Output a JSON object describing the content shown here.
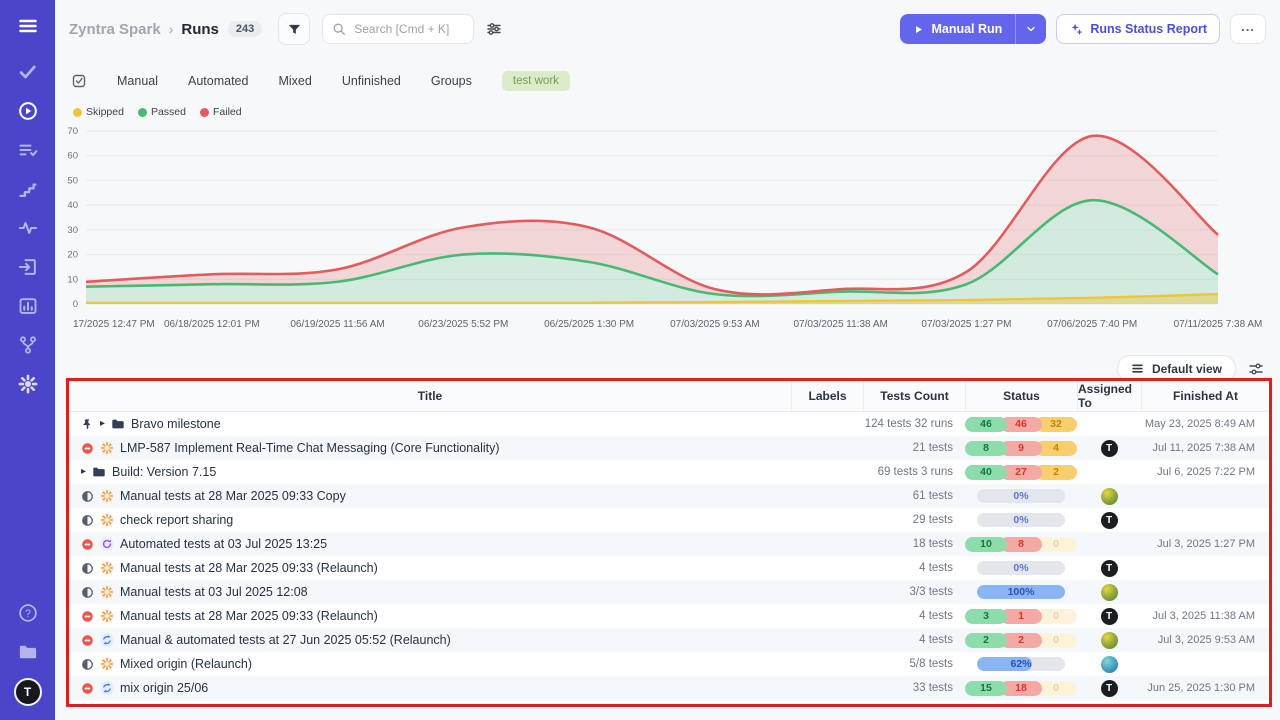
{
  "app": {
    "breadcrumb": {
      "project": "Zyntra Spark",
      "separator": "›",
      "page": "Runs",
      "count": "243"
    },
    "search": {
      "placeholder": "Search [Cmd + K]"
    },
    "actions": {
      "manual_run": "Manual Run",
      "report": "Runs Status Report",
      "more": "..."
    }
  },
  "tabs": {
    "items": [
      "Manual",
      "Automated",
      "Mixed",
      "Unfinished",
      "Groups"
    ],
    "chip": "test work"
  },
  "legend": [
    {
      "label": "Skipped",
      "color": "#eec43d"
    },
    {
      "label": "Passed",
      "color": "#47b972"
    },
    {
      "label": "Failed",
      "color": "#e25c5c"
    }
  ],
  "chart_data": {
    "type": "area",
    "stacked": true,
    "title": "",
    "xlabel": "",
    "ylabel": "",
    "ylim": [
      0,
      70
    ],
    "yticks": [
      0,
      10,
      20,
      30,
      40,
      50,
      60,
      70
    ],
    "grid": true,
    "legend_position": "top-left",
    "x_labels": [
      "17/2025 12:47 PM",
      "06/18/2025 12:01 PM",
      "06/19/2025 11:56 AM",
      "06/23/2025 5:52 PM",
      "06/25/2025 1:30 PM",
      "07/03/2025 9:53 AM",
      "07/03/2025 11:38 AM",
      "07/03/2025 1:27 PM",
      "07/06/2025 7:40 PM",
      "07/11/2025 7:38 AM"
    ],
    "series": [
      {
        "name": "Failed",
        "color": "#e25c5c",
        "fill": "rgba(226,92,92,0.22)",
        "values": [
          9,
          12,
          14,
          31,
          31,
          6,
          6,
          13,
          68,
          28
        ]
      },
      {
        "name": "Passed",
        "color": "#47b972",
        "fill": "rgba(71,185,114,0.20)",
        "values": [
          7,
          8,
          9,
          20,
          17,
          4,
          5,
          8,
          42,
          12
        ]
      },
      {
        "name": "Skipped",
        "color": "#eec43d",
        "fill": "rgba(238,196,61,0.45)",
        "values": [
          0.5,
          0.5,
          0.5,
          0.5,
          0.5,
          0.8,
          1.2,
          1.6,
          2.5,
          4
        ]
      }
    ]
  },
  "view_controls": {
    "default_view": "Default view"
  },
  "table": {
    "columns": [
      "Title",
      "Labels",
      "Tests Count",
      "Status",
      "Assigned To",
      "Finished At"
    ],
    "rows": [
      {
        "pin": true,
        "caret": true,
        "folder": true,
        "status_icon": null,
        "type_icon": null,
        "title": "Bravo milestone",
        "labels": "",
        "tests": "124 tests 32 runs",
        "status": {
          "kind": "badges",
          "passed": "46",
          "failed": "46",
          "skipped": "32",
          "skipped_faded": false
        },
        "assignee": null,
        "finished": "May 23, 2025 8:49 AM"
      },
      {
        "pin": false,
        "caret": false,
        "folder": false,
        "status_icon": "stopped",
        "type_icon": "manual",
        "title": "LMP-587 Implement Real-Time Chat Messaging (Core Functionality)",
        "labels": "",
        "tests": "21 tests",
        "status": {
          "kind": "badges",
          "passed": "8",
          "failed": "9",
          "skipped": "4",
          "skipped_faded": false
        },
        "assignee": "t-dark",
        "finished": "Jul 11, 2025 7:38 AM"
      },
      {
        "pin": false,
        "caret": true,
        "folder": true,
        "status_icon": null,
        "type_icon": null,
        "title": "Build: Version 7.15",
        "labels": "",
        "tests": "69 tests 3 runs",
        "status": {
          "kind": "badges",
          "passed": "40",
          "failed": "27",
          "skipped": "2",
          "skipped_faded": false
        },
        "assignee": null,
        "finished": "Jul 6, 2025 7:22 PM"
      },
      {
        "pin": false,
        "caret": false,
        "folder": false,
        "status_icon": "in-progress",
        "type_icon": "manual",
        "title": "Manual tests at 28 Mar 2025 09:33 Copy",
        "labels": "",
        "tests": "61 tests",
        "status": {
          "kind": "progress",
          "pct": 0,
          "label": "0%"
        },
        "assignee": "globe-green",
        "finished": ""
      },
      {
        "pin": false,
        "caret": false,
        "folder": false,
        "status_icon": "in-progress",
        "type_icon": "manual",
        "title": "check report sharing",
        "labels": "",
        "tests": "29 tests",
        "status": {
          "kind": "progress",
          "pct": 0,
          "label": "0%"
        },
        "assignee": "t-dark",
        "finished": ""
      },
      {
        "pin": false,
        "caret": false,
        "folder": false,
        "status_icon": "stopped",
        "type_icon": "automated",
        "title": "Automated tests at 03 Jul 2025 13:25",
        "labels": "",
        "tests": "18 tests",
        "status": {
          "kind": "badges",
          "passed": "10",
          "failed": "8",
          "skipped": "0",
          "skipped_faded": true
        },
        "assignee": null,
        "finished": "Jul 3, 2025 1:27 PM"
      },
      {
        "pin": false,
        "caret": false,
        "folder": false,
        "status_icon": "in-progress",
        "type_icon": "manual",
        "title": "Manual tests at 28 Mar 2025 09:33 (Relaunch)",
        "labels": "",
        "tests": "4 tests",
        "status": {
          "kind": "progress",
          "pct": 0,
          "label": "0%"
        },
        "assignee": "t-dark",
        "finished": ""
      },
      {
        "pin": false,
        "caret": false,
        "folder": false,
        "status_icon": "in-progress",
        "type_icon": "manual",
        "title": "Manual tests at 03 Jul 2025 12:08",
        "labels": "",
        "tests": "3/3 tests",
        "status": {
          "kind": "progress",
          "pct": 100,
          "label": "100%"
        },
        "assignee": "globe-green",
        "finished": ""
      },
      {
        "pin": false,
        "caret": false,
        "folder": false,
        "status_icon": "stopped",
        "type_icon": "manual",
        "title": "Manual tests at 28 Mar 2025 09:33 (Relaunch)",
        "labels": "",
        "tests": "4 tests",
        "status": {
          "kind": "badges",
          "passed": "3",
          "failed": "1",
          "skipped": "0",
          "skipped_faded": true
        },
        "assignee": "t-dark",
        "finished": "Jul 3, 2025 11:38 AM"
      },
      {
        "pin": false,
        "caret": false,
        "folder": false,
        "status_icon": "stopped",
        "type_icon": "mixed",
        "title": "Manual & automated tests at 27 Jun 2025 05:52 (Relaunch)",
        "labels": "",
        "tests": "4 tests",
        "status": {
          "kind": "badges",
          "passed": "2",
          "failed": "2",
          "skipped": "0",
          "skipped_faded": true
        },
        "assignee": "globe-green",
        "finished": "Jul 3, 2025 9:53 AM"
      },
      {
        "pin": false,
        "caret": false,
        "folder": false,
        "status_icon": "in-progress",
        "type_icon": "manual",
        "title": "Mixed origin (Relaunch)",
        "labels": "",
        "tests": "5/8 tests",
        "status": {
          "kind": "progress",
          "pct": 62,
          "label": "62%"
        },
        "assignee": "globe-teal",
        "finished": ""
      },
      {
        "pin": false,
        "caret": false,
        "folder": false,
        "status_icon": "stopped",
        "type_icon": "mixed",
        "title": "mix origin 25/06",
        "labels": "",
        "tests": "33 tests",
        "status": {
          "kind": "badges",
          "passed": "15",
          "failed": "18",
          "skipped": "0",
          "skipped_faded": true
        },
        "assignee": "t-dark",
        "finished": "Jun 25, 2025 1:30 PM"
      }
    ]
  },
  "sidebar": {
    "color": "#4b46c9",
    "avatar_letter": "T",
    "top": [
      {
        "icon": "menu",
        "bright": true
      },
      {
        "icon": "check",
        "bright": false
      },
      {
        "icon": "play-circle",
        "bright": true
      },
      {
        "icon": "list-check",
        "bright": false
      },
      {
        "icon": "steps",
        "bright": false
      },
      {
        "icon": "pulse",
        "bright": false
      },
      {
        "icon": "sign-in",
        "bright": false
      },
      {
        "icon": "bar-chart",
        "bright": false
      },
      {
        "icon": "branch",
        "bright": false
      },
      {
        "icon": "gear",
        "bright": false,
        "semibright": true
      }
    ],
    "bottom": [
      {
        "icon": "help",
        "bright": false
      },
      {
        "icon": "folder",
        "bright": false
      }
    ]
  },
  "colors": {
    "accent": "#6366ec",
    "annotation_border": "#e01e1e",
    "badge_passed_bg": "#8edcac",
    "badge_failed_bg": "#f5a9a4",
    "badge_skipped_bg": "#f7cf6e",
    "chip_bg": "#dcecca"
  }
}
